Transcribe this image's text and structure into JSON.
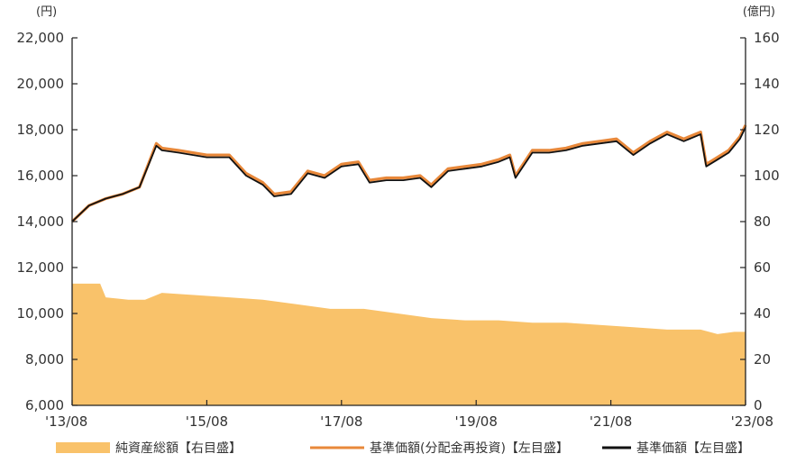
{
  "chart_data": {
    "type": "area+line",
    "title": "",
    "left_axis": {
      "unit_label": "(円)",
      "ylim": [
        6000,
        22000
      ],
      "ticks": [
        6000,
        8000,
        10000,
        12000,
        14000,
        16000,
        18000,
        20000,
        22000
      ],
      "tick_labels": [
        "6,000",
        "8,000",
        "10,000",
        "12,000",
        "14,000",
        "16,000",
        "18,000",
        "20,000",
        "22,000"
      ]
    },
    "right_axis": {
      "unit_label": "(億円)",
      "ylim": [
        0,
        160
      ],
      "ticks": [
        0,
        20,
        40,
        60,
        80,
        100,
        120,
        140,
        160
      ],
      "tick_labels": [
        "0",
        "20",
        "40",
        "60",
        "80",
        "100",
        "120",
        "140",
        "160"
      ]
    },
    "x_axis": {
      "range": [
        "2013-08",
        "2023-08"
      ],
      "tick_positions": [
        "2013-08",
        "2015-08",
        "2017-08",
        "2019-08",
        "2021-08",
        "2023-08"
      ],
      "tick_labels": [
        "'13/08",
        "'15/08",
        "'17/08",
        "'19/08",
        "'21/08",
        "'23/08"
      ]
    },
    "legend_position": "bottom",
    "series": [
      {
        "name": "純資産総額【右目盛】",
        "type": "area",
        "axis": "right",
        "color": "#F9C26A",
        "x": [
          "2013-08",
          "2014-01",
          "2014-02",
          "2014-06",
          "2014-09",
          "2014-12",
          "2015-06",
          "2015-12",
          "2016-06",
          "2016-12",
          "2017-06",
          "2017-12",
          "2018-06",
          "2018-12",
          "2019-06",
          "2019-12",
          "2020-06",
          "2020-12",
          "2021-06",
          "2021-12",
          "2022-06",
          "2022-12",
          "2023-03",
          "2023-06",
          "2023-08"
        ],
        "values": [
          53,
          53,
          47,
          46,
          46,
          49,
          48,
          47,
          46,
          44,
          42,
          42,
          40,
          38,
          37,
          37,
          36,
          36,
          35,
          34,
          33,
          33,
          31,
          32,
          32
        ]
      },
      {
        "name": "基準価額(分配金再投資)【左目盛】",
        "type": "line",
        "axis": "left",
        "color": "#E8883A",
        "x": [
          "2013-08",
          "2013-11",
          "2014-02",
          "2014-05",
          "2014-08",
          "2014-11",
          "2014-12",
          "2015-03",
          "2015-08",
          "2015-12",
          "2016-03",
          "2016-06",
          "2016-08",
          "2016-11",
          "2017-02",
          "2017-05",
          "2017-08",
          "2017-11",
          "2018-01",
          "2018-04",
          "2018-07",
          "2018-10",
          "2018-12",
          "2019-03",
          "2019-06",
          "2019-09",
          "2019-12",
          "2020-02",
          "2020-03",
          "2020-06",
          "2020-09",
          "2020-12",
          "2021-03",
          "2021-06",
          "2021-09",
          "2021-12",
          "2022-03",
          "2022-06",
          "2022-09",
          "2022-12",
          "2023-01",
          "2023-03",
          "2023-05",
          "2023-07",
          "2023-08"
        ],
        "values": [
          14000,
          14700,
          15000,
          15200,
          15500,
          17400,
          17200,
          17100,
          16900,
          16900,
          16100,
          15700,
          15200,
          15300,
          16200,
          16000,
          16500,
          16600,
          15800,
          15900,
          15900,
          16000,
          15600,
          16300,
          16400,
          16500,
          16700,
          16900,
          16000,
          17100,
          17100,
          17200,
          17400,
          17500,
          17600,
          17000,
          17500,
          17900,
          17600,
          17900,
          16500,
          16800,
          17100,
          17700,
          18200
        ]
      },
      {
        "name": "基準価額【左目盛】",
        "type": "line",
        "axis": "left",
        "color": "#111111",
        "x": [
          "2013-08",
          "2013-11",
          "2014-02",
          "2014-05",
          "2014-08",
          "2014-11",
          "2014-12",
          "2015-03",
          "2015-08",
          "2015-12",
          "2016-03",
          "2016-06",
          "2016-08",
          "2016-11",
          "2017-02",
          "2017-05",
          "2017-08",
          "2017-11",
          "2018-01",
          "2018-04",
          "2018-07",
          "2018-10",
          "2018-12",
          "2019-03",
          "2019-06",
          "2019-09",
          "2019-12",
          "2020-02",
          "2020-03",
          "2020-06",
          "2020-09",
          "2020-12",
          "2021-03",
          "2021-06",
          "2021-09",
          "2021-12",
          "2022-03",
          "2022-06",
          "2022-09",
          "2022-12",
          "2023-01",
          "2023-03",
          "2023-05",
          "2023-07",
          "2023-08"
        ],
        "values": [
          14000,
          14700,
          15000,
          15200,
          15500,
          17300,
          17100,
          17000,
          16800,
          16800,
          16000,
          15600,
          15100,
          15200,
          16100,
          15900,
          16400,
          16500,
          15700,
          15800,
          15800,
          15900,
          15500,
          16200,
          16300,
          16400,
          16600,
          16800,
          15900,
          17000,
          17000,
          17100,
          17300,
          17400,
          17500,
          16900,
          17400,
          17800,
          17500,
          17800,
          16400,
          16700,
          17000,
          17600,
          18100
        ]
      }
    ]
  }
}
